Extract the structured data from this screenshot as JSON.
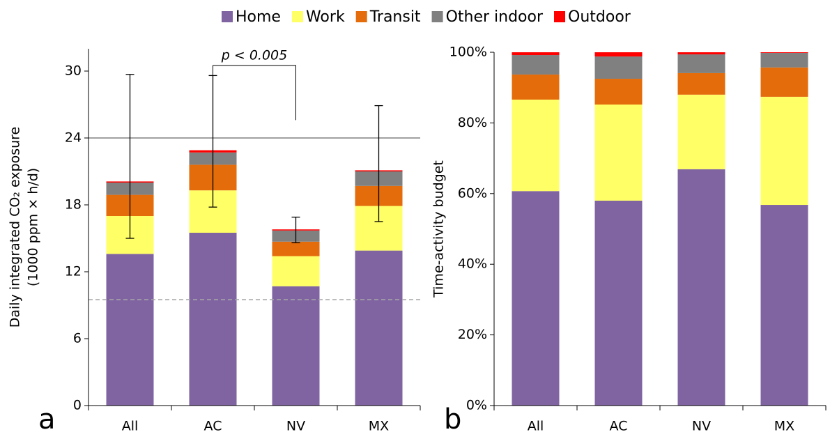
{
  "chart_data": [
    {
      "type": "bar",
      "stacked": true,
      "panel_label": "a",
      "ylabel": [
        "Daily integrated CO₂ exposure",
        "(1000 ppm × h/d)"
      ],
      "categories": [
        "All",
        "AC",
        "NV",
        "MX"
      ],
      "series": [
        {
          "name": "Home",
          "color": "#8064a2",
          "values": [
            13.6,
            15.5,
            10.7,
            13.9
          ]
        },
        {
          "name": "Work",
          "color": "#ffff66",
          "values": [
            3.4,
            3.8,
            2.7,
            4.0
          ]
        },
        {
          "name": "Transit",
          "color": "#e46c0a",
          "values": [
            1.9,
            2.3,
            1.3,
            1.8
          ]
        },
        {
          "name": "Other indoor",
          "color": "#808080",
          "values": [
            1.1,
            1.1,
            1.0,
            1.3
          ]
        },
        {
          "name": "Outdoor",
          "color": "#ff0000",
          "values": [
            0.1,
            0.2,
            0.1,
            0.1
          ]
        }
      ],
      "error_low": [
        15.0,
        17.8,
        14.6,
        16.5
      ],
      "error_high": [
        29.7,
        29.6,
        16.9,
        26.9
      ],
      "hlines": [
        {
          "value": 24,
          "color": "#808080",
          "dashed": false
        },
        {
          "value": 9.5,
          "color": "#a6a6a6",
          "dashed": true
        }
      ],
      "annotation": {
        "text": "p < 0.005",
        "from": 1,
        "to": 2,
        "y": 30.5,
        "y_from": 29.6,
        "y_to": 25.6
      },
      "ylim": [
        0,
        32
      ],
      "yticks": [
        0,
        6,
        12,
        18,
        24,
        30
      ]
    },
    {
      "type": "bar",
      "stacked": true,
      "panel_label": "b",
      "ylabel": [
        "Time-activity budget"
      ],
      "categories": [
        "All",
        "AC",
        "NV",
        "MX"
      ],
      "series": [
        {
          "color": "#8064a2",
          "values": [
            60.7,
            58.0,
            66.9,
            56.8
          ]
        },
        {
          "color": "#ffff66",
          "values": [
            25.9,
            27.2,
            21.1,
            30.6
          ]
        },
        {
          "color": "#e46c0a",
          "values": [
            7.1,
            7.3,
            6.1,
            8.3
          ]
        },
        {
          "color": "#808080",
          "values": [
            5.5,
            6.3,
            5.3,
            4.1
          ]
        },
        {
          "color": "#ff0000",
          "values": [
            0.8,
            1.2,
            0.6,
            0.2
          ]
        }
      ],
      "ylim": [
        0,
        100
      ],
      "yticks": [
        {
          "value": 0,
          "label": "0%"
        },
        {
          "value": 20,
          "label": "20%"
        },
        {
          "value": 40,
          "label": "40%"
        },
        {
          "value": 60,
          "label": "60%"
        },
        {
          "value": 80,
          "label": "80%"
        },
        {
          "value": 100,
          "label": "100%"
        }
      ]
    }
  ]
}
